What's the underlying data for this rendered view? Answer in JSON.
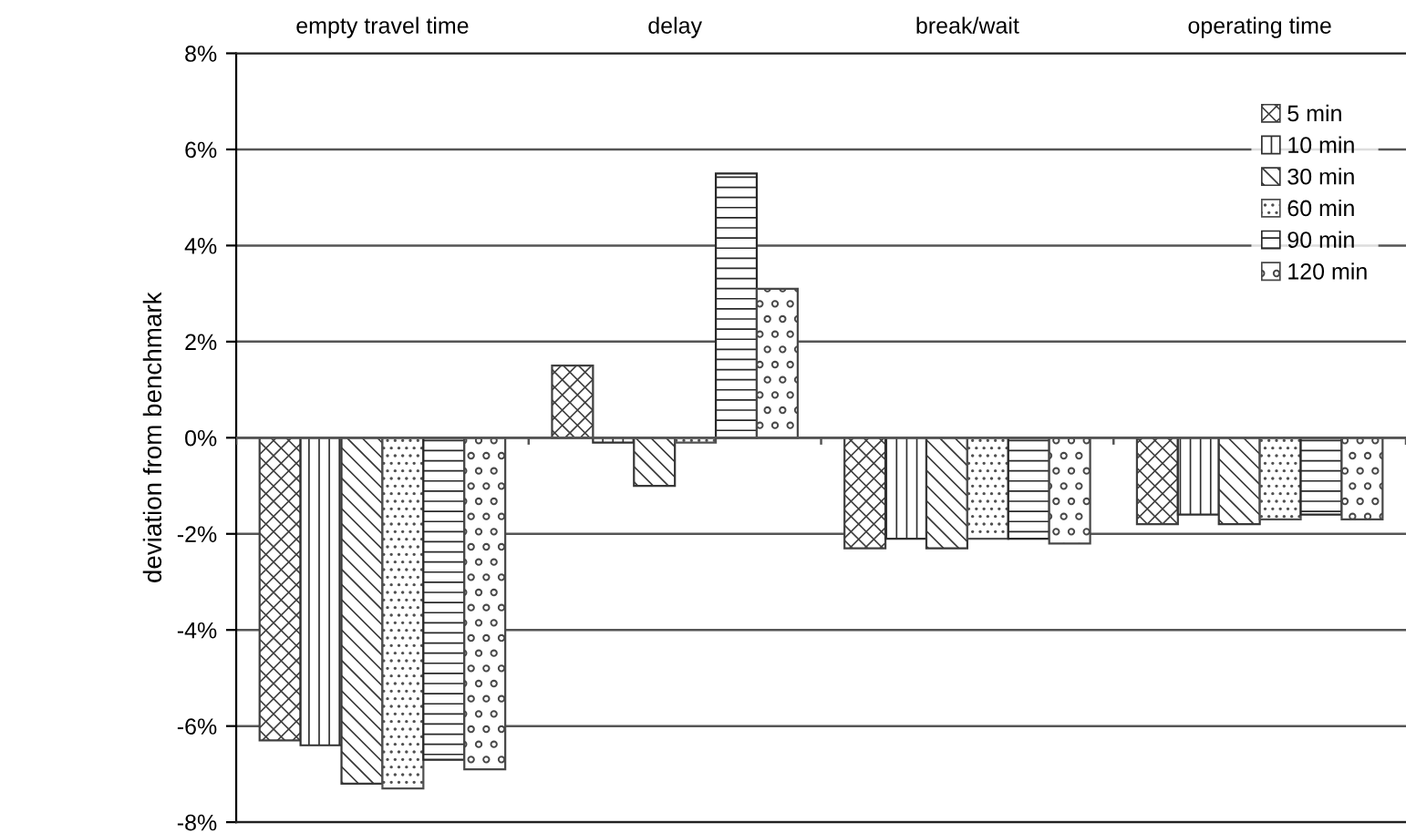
{
  "chart_data": {
    "type": "bar",
    "ylabel": "deviation from benchmark",
    "categories": [
      "empty travel time",
      "delay",
      "break/wait",
      "operating time"
    ],
    "series": [
      {
        "name": "5 min",
        "color": "#404040",
        "values": [
          -6.3,
          1.5,
          -2.3,
          -1.8
        ]
      },
      {
        "name": "10 min",
        "color": "#303030",
        "values": [
          -6.4,
          -0.1,
          -2.1,
          -1.6
        ]
      },
      {
        "name": "30 min",
        "color": "#383838",
        "values": [
          -7.2,
          -1.0,
          -2.3,
          -1.8
        ]
      },
      {
        "name": "60 min",
        "color": "#505050",
        "values": [
          -7.3,
          -0.1,
          -2.1,
          -1.7
        ]
      },
      {
        "name": "90 min",
        "color": "#282828",
        "values": [
          -6.7,
          5.5,
          -2.1,
          -1.6
        ]
      },
      {
        "name": "120 min",
        "color": "#484848",
        "values": [
          -6.9,
          3.1,
          -2.2,
          -1.7
        ]
      }
    ],
    "ylim": [
      -8,
      8
    ],
    "yticks": [
      {
        "value": -8,
        "label": "-8%"
      },
      {
        "value": -6,
        "label": "-6%"
      },
      {
        "value": -4,
        "label": "-4%"
      },
      {
        "value": -2,
        "label": "-2%"
      },
      {
        "value": 0,
        "label": "0%"
      },
      {
        "value": 2,
        "label": "2%"
      },
      {
        "value": 4,
        "label": "4%"
      },
      {
        "value": 6,
        "label": "6%"
      },
      {
        "value": 8,
        "label": "8%"
      }
    ],
    "grid": "y",
    "legend": "top right"
  }
}
